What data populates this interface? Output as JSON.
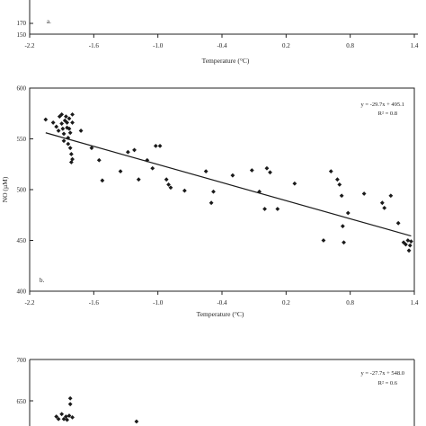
{
  "chart_data": [
    {
      "type": "scatter",
      "panel_label": "a.",
      "xlabel": "Temperature (°C)",
      "ylabel": "",
      "xlim": [
        -2.2,
        1.4
      ],
      "ylim": [
        150,
        180
      ],
      "x_ticks": [
        "-2.2",
        "-1.6",
        "-1.0",
        "-0.4",
        "0.2",
        "0.8",
        "1.4"
      ],
      "y_ticks": [
        "170",
        "150"
      ],
      "points": []
    },
    {
      "type": "scatter",
      "panel_label": "b.",
      "xlabel": "Temperature (°C)",
      "ylabel": "NO (µM)",
      "xlim": [
        -2.2,
        1.4
      ],
      "ylim": [
        400,
        600
      ],
      "x_ticks": [
        "-2.2",
        "-1.6",
        "-1.0",
        "-0.4",
        "0.2",
        "0.8",
        "1.4"
      ],
      "y_ticks": [
        "600",
        "550",
        "500",
        "450",
        "400"
      ],
      "equation": "y = -29.7x + 495.1",
      "r2": "R² = 0.8",
      "fit": {
        "slope": -29.7,
        "intercept": 495.1,
        "x_range": [
          -2.05,
          1.37
        ]
      },
      "points": [
        [
          -2.05,
          569
        ],
        [
          -1.98,
          566
        ],
        [
          -1.95,
          562
        ],
        [
          -1.93,
          558
        ],
        [
          -1.92,
          572
        ],
        [
          -1.9,
          574
        ],
        [
          -1.9,
          565
        ],
        [
          -1.89,
          560
        ],
        [
          -1.88,
          555
        ],
        [
          -1.88,
          548
        ],
        [
          -1.87,
          568
        ],
        [
          -1.86,
          572
        ],
        [
          -1.85,
          566
        ],
        [
          -1.85,
          561
        ],
        [
          -1.84,
          551
        ],
        [
          -1.84,
          545
        ],
        [
          -1.83,
          570
        ],
        [
          -1.83,
          560
        ],
        [
          -1.82,
          556
        ],
        [
          -1.82,
          541
        ],
        [
          -1.81,
          535
        ],
        [
          -1.81,
          527
        ],
        [
          -1.8,
          566
        ],
        [
          -1.8,
          574
        ],
        [
          -1.8,
          530
        ],
        [
          -1.72,
          558
        ],
        [
          -1.62,
          541
        ],
        [
          -1.55,
          529
        ],
        [
          -1.52,
          509
        ],
        [
          -1.35,
          518
        ],
        [
          -1.28,
          537
        ],
        [
          -1.22,
          539
        ],
        [
          -1.18,
          510
        ],
        [
          -1.1,
          529
        ],
        [
          -1.05,
          521
        ],
        [
          -1.02,
          543
        ],
        [
          -0.98,
          543
        ],
        [
          -0.92,
          510
        ],
        [
          -0.9,
          505
        ],
        [
          -0.88,
          502
        ],
        [
          -0.75,
          499
        ],
        [
          -0.55,
          518
        ],
        [
          -0.5,
          487
        ],
        [
          -0.48,
          498
        ],
        [
          -0.3,
          514
        ],
        [
          -0.12,
          519
        ],
        [
          -0.05,
          498
        ],
        [
          0.0,
          481
        ],
        [
          0.02,
          521
        ],
        [
          0.05,
          517
        ],
        [
          0.12,
          481
        ],
        [
          0.28,
          506
        ],
        [
          0.55,
          450
        ],
        [
          0.62,
          518
        ],
        [
          0.68,
          510
        ],
        [
          0.7,
          505
        ],
        [
          0.72,
          494
        ],
        [
          0.73,
          464
        ],
        [
          0.74,
          448
        ],
        [
          0.78,
          477
        ],
        [
          0.93,
          496
        ],
        [
          1.1,
          487
        ],
        [
          1.12,
          482
        ],
        [
          1.18,
          494
        ],
        [
          1.25,
          467
        ],
        [
          1.3,
          448
        ],
        [
          1.32,
          446
        ],
        [
          1.34,
          450
        ],
        [
          1.35,
          440
        ],
        [
          1.36,
          445
        ],
        [
          1.37,
          449
        ]
      ]
    },
    {
      "type": "scatter",
      "panel_label": "",
      "xlabel": "",
      "ylabel": "",
      "xlim": [
        -2.2,
        1.4
      ],
      "ylim": [
        600,
        700
      ],
      "y_ticks": [
        "700",
        "650"
      ],
      "equation": "y = -27.7x + 548.0",
      "r2": "R² = 0.6",
      "points": [
        [
          -1.95,
          631
        ],
        [
          -1.93,
          628
        ],
        [
          -1.9,
          634
        ],
        [
          -1.88,
          628
        ],
        [
          -1.86,
          631
        ],
        [
          -1.85,
          627
        ],
        [
          -1.83,
          632
        ],
        [
          -1.82,
          646
        ],
        [
          -1.82,
          653
        ],
        [
          -1.8,
          630
        ],
        [
          -1.2,
          625
        ]
      ]
    }
  ]
}
